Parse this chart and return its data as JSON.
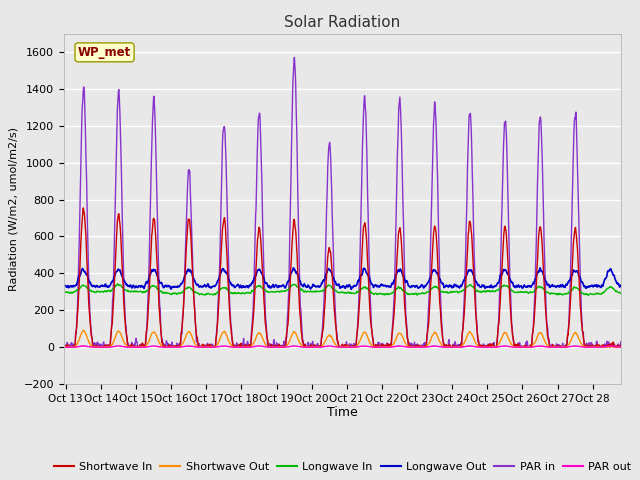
{
  "title": "Solar Radiation",
  "xlabel": "Time",
  "ylabel": "Radiation (W/m2, umol/m2/s)",
  "ylim": [
    -200,
    1700
  ],
  "yticks": [
    -200,
    0,
    200,
    400,
    600,
    800,
    1000,
    1200,
    1400,
    1600
  ],
  "x_tick_labels": [
    "Oct 13",
    "Oct 14",
    "Oct 15",
    "Oct 16",
    "Oct 17",
    "Oct 18",
    "Oct 19",
    "Oct 20",
    "Oct 21",
    "Oct 22",
    "Oct 23",
    "Oct 24",
    "Oct 25",
    "Oct 26",
    "Oct 27",
    "Oct 28"
  ],
  "n_days": 16,
  "pts_per_day": 96,
  "fig_bg_color": "#e8e8e8",
  "plot_bg_color": "#e8e8e8",
  "grid_color": "#ffffff",
  "legend_label": "WP_met",
  "series": {
    "shortwave_in": {
      "color": "#cc0000",
      "lw": 1.0
    },
    "shortwave_out": {
      "color": "#ff8c00",
      "lw": 1.0
    },
    "longwave_in": {
      "color": "#00bb00",
      "lw": 1.0
    },
    "longwave_out": {
      "color": "#0000cc",
      "lw": 1.2
    },
    "par_in": {
      "color": "#8833cc",
      "lw": 1.0
    },
    "par_out": {
      "color": "#ff00cc",
      "lw": 1.0
    }
  },
  "sw_in_peaks": [
    750,
    720,
    700,
    700,
    700,
    650,
    680,
    540,
    670,
    640,
    650,
    680,
    650,
    650,
    640,
    10
  ],
  "par_in_peaks": [
    1410,
    1380,
    1340,
    960,
    1230,
    1280,
    1560,
    1100,
    1350,
    1340,
    1300,
    1280,
    1240,
    1250,
    1260,
    10
  ],
  "lw_base": 295,
  "lw_out_base": 330,
  "lw_out_bump": 90
}
